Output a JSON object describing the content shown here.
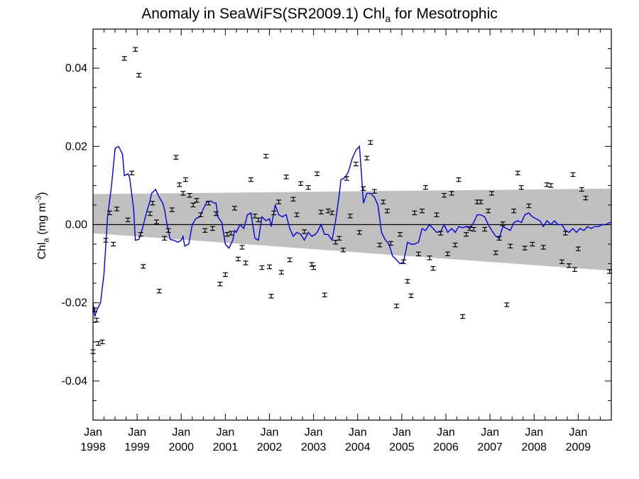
{
  "chart_data": {
    "type": "scatter",
    "title": "Anomaly in SeaWiFS(SR2009.1) Chl",
    "title_subscript": "a",
    "title_suffix": " for Mesotrophic",
    "ylabel_prefix": "Chl",
    "ylabel_subscript": "a",
    "ylabel_units": " (mg m",
    "ylabel_exponent": "-3",
    "ylabel_close": ")",
    "ylim": [
      -0.05,
      0.05
    ],
    "xlim": [
      1998.0,
      2009.75
    ],
    "yticks": [
      {
        "v": 0.04,
        "label": "0.04"
      },
      {
        "v": 0.02,
        "label": "0.02"
      },
      {
        "v": 0.0,
        "label": "0.00"
      },
      {
        "v": -0.02,
        "label": "-0.02"
      },
      {
        "v": -0.04,
        "label": "-0.04"
      }
    ],
    "xticks": [
      {
        "v": 1998.0,
        "month": "Jan",
        "year": "1998"
      },
      {
        "v": 1999.0,
        "month": "Jan",
        "year": "1999"
      },
      {
        "v": 2000.0,
        "month": "Jan",
        "year": "2000"
      },
      {
        "v": 2001.0,
        "month": "Jan",
        "year": "2001"
      },
      {
        "v": 2002.0,
        "month": "Jan",
        "year": "2002"
      },
      {
        "v": 2003.0,
        "month": "Jan",
        "year": "2003"
      },
      {
        "v": 2004.0,
        "month": "Jan",
        "year": "2004"
      },
      {
        "v": 2005.0,
        "month": "Jan",
        "year": "2005"
      },
      {
        "v": 2006.0,
        "month": "Jan",
        "year": "2006"
      },
      {
        "v": 2007.0,
        "month": "Jan",
        "year": "2007"
      },
      {
        "v": 2008.0,
        "month": "Jan",
        "year": "2008"
      },
      {
        "v": 2009.0,
        "month": "Jan",
        "year": "2009"
      }
    ],
    "band": {
      "color": "#c0c0c0",
      "left": [
        1998.0,
        0.0078,
        -0.0022
      ],
      "right": [
        2009.75,
        0.0092,
        -0.0118
      ]
    },
    "zero_line_color": "#000000",
    "line_color": "#0000dd",
    "errorbar_color": "#000000",
    "monthly_anomalies": [
      [
        1998.0,
        -0.0325
      ],
      [
        1998.04,
        -0.0218
      ],
      [
        1998.08,
        -0.0244
      ],
      [
        1998.12,
        -0.0304
      ],
      [
        1998.21,
        -0.03
      ],
      [
        1998.29,
        -0.004
      ],
      [
        1998.38,
        0.003
      ],
      [
        1998.46,
        -0.005
      ],
      [
        1998.54,
        0.004
      ],
      [
        1998.71,
        0.0425
      ],
      [
        1998.79,
        0.0012
      ],
      [
        1998.88,
        0.0132
      ],
      [
        1998.96,
        0.0448
      ],
      [
        1999.04,
        0.0382
      ],
      [
        1999.08,
        -0.0025
      ],
      [
        1999.14,
        -0.0107
      ],
      [
        1999.29,
        0.0028
      ],
      [
        1999.35,
        0.0055
      ],
      [
        1999.44,
        0.0007
      ],
      [
        1999.5,
        -0.017
      ],
      [
        1999.62,
        -0.0035
      ],
      [
        1999.71,
        -0.0015
      ],
      [
        1999.79,
        0.0038
      ],
      [
        1999.88,
        0.0172
      ],
      [
        1999.96,
        0.0102
      ],
      [
        2000.04,
        0.008
      ],
      [
        2000.1,
        0.0115
      ],
      [
        2000.19,
        0.0075
      ],
      [
        2000.27,
        0.005
      ],
      [
        2000.35,
        0.0062
      ],
      [
        2000.44,
        0.0025
      ],
      [
        2000.54,
        -0.0015
      ],
      [
        2000.62,
        0.0055
      ],
      [
        2000.71,
        -0.001
      ],
      [
        2000.79,
        0.0028
      ],
      [
        2000.88,
        -0.0152
      ],
      [
        2001.0,
        -0.0128
      ],
      [
        2001.04,
        -0.0025
      ],
      [
        2001.13,
        -0.0022
      ],
      [
        2001.21,
        0.0042
      ],
      [
        2001.29,
        -0.0088
      ],
      [
        2001.38,
        -0.0058
      ],
      [
        2001.46,
        -0.0098
      ],
      [
        2001.58,
        0.0115
      ],
      [
        2001.67,
        0.0022
      ],
      [
        2001.75,
        0.0012
      ],
      [
        2001.83,
        -0.011
      ],
      [
        2001.92,
        0.0175
      ],
      [
        2002.0,
        -0.0108
      ],
      [
        2002.04,
        -0.0183
      ],
      [
        2002.1,
        0.003
      ],
      [
        2002.21,
        0.0058
      ],
      [
        2002.27,
        -0.0122
      ],
      [
        2002.38,
        0.0122
      ],
      [
        2002.46,
        -0.009
      ],
      [
        2002.54,
        0.0065
      ],
      [
        2002.62,
        0.0025
      ],
      [
        2002.71,
        0.0105
      ],
      [
        2002.79,
        -0.0018
      ],
      [
        2002.88,
        0.0095
      ],
      [
        2002.96,
        -0.0102
      ],
      [
        2003.0,
        -0.011
      ],
      [
        2003.08,
        0.013
      ],
      [
        2003.17,
        0.0032
      ],
      [
        2003.25,
        -0.018
      ],
      [
        2003.33,
        0.0035
      ],
      [
        2003.42,
        0.003
      ],
      [
        2003.5,
        -0.0045
      ],
      [
        2003.58,
        -0.0035
      ],
      [
        2003.67,
        -0.0065
      ],
      [
        2003.75,
        0.0118
      ],
      [
        2003.83,
        0.0022
      ],
      [
        2003.96,
        0.0155
      ],
      [
        2004.04,
        -0.002
      ],
      [
        2004.13,
        0.0092
      ],
      [
        2004.21,
        0.017
      ],
      [
        2004.29,
        0.021
      ],
      [
        2004.38,
        0.0085
      ],
      [
        2004.5,
        -0.0052
      ],
      [
        2004.58,
        0.0058
      ],
      [
        2004.67,
        0.0035
      ],
      [
        2004.75,
        -0.0048
      ],
      [
        2004.88,
        -0.0208
      ],
      [
        2004.96,
        -0.0025
      ],
      [
        2005.04,
        -0.0095
      ],
      [
        2005.13,
        -0.0145
      ],
      [
        2005.21,
        -0.0182
      ],
      [
        2005.29,
        0.003
      ],
      [
        2005.38,
        -0.0075
      ],
      [
        2005.46,
        0.0035
      ],
      [
        2005.54,
        0.0095
      ],
      [
        2005.63,
        -0.0085
      ],
      [
        2005.71,
        -0.0112
      ],
      [
        2005.79,
        0.0025
      ],
      [
        2005.88,
        -0.0022
      ],
      [
        2005.96,
        0.0075
      ],
      [
        2006.04,
        -0.0075
      ],
      [
        2006.13,
        0.008
      ],
      [
        2006.21,
        -0.0052
      ],
      [
        2006.29,
        0.0115
      ],
      [
        2006.38,
        -0.0235
      ],
      [
        2006.46,
        -0.0025
      ],
      [
        2006.54,
        -0.001
      ],
      [
        2006.63,
        -0.0012
      ],
      [
        2006.71,
        0.0058
      ],
      [
        2006.79,
        0.0058
      ],
      [
        2006.88,
        -0.0012
      ],
      [
        2006.96,
        0.0035
      ],
      [
        2007.04,
        0.008
      ],
      [
        2007.13,
        -0.0072
      ],
      [
        2007.21,
        -0.0035
      ],
      [
        2007.29,
        0.0002
      ],
      [
        2007.38,
        -0.0205
      ],
      [
        2007.46,
        -0.0055
      ],
      [
        2007.54,
        0.0035
      ],
      [
        2007.63,
        0.0132
      ],
      [
        2007.71,
        0.0095
      ],
      [
        2007.79,
        -0.006
      ],
      [
        2007.88,
        0.0048
      ],
      [
        2007.96,
        -0.005
      ],
      [
        2008.21,
        -0.0058
      ],
      [
        2008.29,
        0.0102
      ],
      [
        2008.38,
        0.01
      ],
      [
        2008.63,
        -0.0095
      ],
      [
        2008.71,
        -0.0022
      ],
      [
        2008.79,
        -0.0105
      ],
      [
        2008.88,
        0.0128
      ],
      [
        2008.92,
        -0.0115
      ],
      [
        2009.0,
        -0.0062
      ],
      [
        2009.08,
        0.009
      ],
      [
        2009.17,
        0.0068
      ],
      [
        2009.71,
        -0.012
      ]
    ],
    "smoothed": [
      [
        1998.0,
        -0.02
      ],
      [
        1998.04,
        -0.0235
      ],
      [
        1998.08,
        -0.022
      ],
      [
        1998.17,
        -0.02
      ],
      [
        1998.25,
        -0.0125
      ],
      [
        1998.33,
        0.002
      ],
      [
        1998.42,
        0.01
      ],
      [
        1998.5,
        0.0195
      ],
      [
        1998.58,
        0.02
      ],
      [
        1998.67,
        0.018
      ],
      [
        1998.71,
        0.0125
      ],
      [
        1998.79,
        0.013
      ],
      [
        1998.83,
        0.012
      ],
      [
        1998.92,
        0.004
      ],
      [
        1998.96,
        -0.004
      ],
      [
        1999.04,
        -0.0038
      ],
      [
        1999.12,
        -0.001
      ],
      [
        1999.21,
        0.003
      ],
      [
        1999.29,
        0.006
      ],
      [
        1999.33,
        0.008
      ],
      [
        1999.42,
        0.009
      ],
      [
        1999.5,
        0.007
      ],
      [
        1999.58,
        0.0055
      ],
      [
        1999.62,
        0.004
      ],
      [
        1999.67,
        0.0005
      ],
      [
        1999.75,
        -0.0038
      ],
      [
        1999.83,
        -0.004
      ],
      [
        1999.92,
        -0.0045
      ],
      [
        2000.0,
        -0.004
      ],
      [
        2000.04,
        -0.003
      ],
      [
        2000.08,
        -0.0055
      ],
      [
        2000.17,
        -0.005
      ],
      [
        2000.25,
        0.0
      ],
      [
        2000.33,
        0.0015
      ],
      [
        2000.42,
        0.002
      ],
      [
        2000.5,
        0.004
      ],
      [
        2000.58,
        0.0058
      ],
      [
        2000.67,
        0.006
      ],
      [
        2000.75,
        0.0055
      ],
      [
        2000.79,
        0.0055
      ],
      [
        2000.83,
        0.002
      ],
      [
        2000.92,
        0.0005
      ],
      [
        2001.0,
        -0.005
      ],
      [
        2001.08,
        -0.006
      ],
      [
        2001.17,
        -0.004
      ],
      [
        2001.21,
        -0.0015
      ],
      [
        2001.25,
        -0.002
      ],
      [
        2001.33,
        0.0
      ],
      [
        2001.42,
        -0.001
      ],
      [
        2001.5,
        0.0025
      ],
      [
        2001.58,
        0.003
      ],
      [
        2001.67,
        -0.0035
      ],
      [
        2001.75,
        -0.004
      ],
      [
        2001.83,
        0.002
      ],
      [
        2001.92,
        0.001
      ],
      [
        2002.0,
        0.0015
      ],
      [
        2002.04,
        -0.0005
      ],
      [
        2002.13,
        0.005
      ],
      [
        2002.21,
        0.0025
      ],
      [
        2002.29,
        0.002
      ],
      [
        2002.38,
        0.0025
      ],
      [
        2002.46,
        -0.001
      ],
      [
        2002.54,
        -0.003
      ],
      [
        2002.62,
        -0.002
      ],
      [
        2002.71,
        -0.0025
      ],
      [
        2002.79,
        -0.004
      ],
      [
        2002.88,
        -0.002
      ],
      [
        2002.96,
        -0.003
      ],
      [
        2003.04,
        -0.0025
      ],
      [
        2003.08,
        -0.002
      ],
      [
        2003.17,
        0.0
      ],
      [
        2003.25,
        -0.0025
      ],
      [
        2003.33,
        -0.0025
      ],
      [
        2003.42,
        -0.004
      ],
      [
        2003.5,
        0.001
      ],
      [
        2003.58,
        0.0075
      ],
      [
        2003.62,
        0.0115
      ],
      [
        2003.71,
        0.012
      ],
      [
        2003.79,
        0.0135
      ],
      [
        2003.88,
        0.017
      ],
      [
        2003.96,
        0.019
      ],
      [
        2004.04,
        0.02
      ],
      [
        2004.08,
        0.014
      ],
      [
        2004.13,
        0.0055
      ],
      [
        2004.21,
        0.008
      ],
      [
        2004.29,
        0.008
      ],
      [
        2004.38,
        0.007
      ],
      [
        2004.46,
        0.005
      ],
      [
        2004.54,
        -0.002
      ],
      [
        2004.63,
        -0.004
      ],
      [
        2004.71,
        -0.005
      ],
      [
        2004.79,
        -0.008
      ],
      [
        2004.88,
        -0.009
      ],
      [
        2004.96,
        -0.01
      ],
      [
        2005.04,
        -0.0095
      ],
      [
        2005.13,
        -0.0045
      ],
      [
        2005.21,
        -0.005
      ],
      [
        2005.29,
        -0.005
      ],
      [
        2005.38,
        -0.0045
      ],
      [
        2005.46,
        -0.001
      ],
      [
        2005.54,
        -0.0015
      ],
      [
        2005.63,
        0.0
      ],
      [
        2005.71,
        -0.001
      ],
      [
        2005.79,
        -0.002
      ],
      [
        2005.88,
        -0.0018
      ],
      [
        2005.96,
        0.0
      ],
      [
        2006.04,
        -0.002
      ],
      [
        2006.13,
        -0.001
      ],
      [
        2006.21,
        -0.002
      ],
      [
        2006.29,
        -0.0005
      ],
      [
        2006.38,
        -0.0008
      ],
      [
        2006.46,
        -0.0005
      ],
      [
        2006.54,
        -0.001
      ],
      [
        2006.63,
        0.0005
      ],
      [
        2006.71,
        0.0025
      ],
      [
        2006.79,
        0.0025
      ],
      [
        2006.88,
        0.002
      ],
      [
        2006.96,
        0.0
      ],
      [
        2007.04,
        -0.0015
      ],
      [
        2007.13,
        -0.003
      ],
      [
        2007.21,
        -0.0035
      ],
      [
        2007.29,
        -0.0005
      ],
      [
        2007.38,
        -0.001
      ],
      [
        2007.46,
        -0.0015
      ],
      [
        2007.54,
        0.0005
      ],
      [
        2007.63,
        0.001
      ],
      [
        2007.71,
        0.0005
      ],
      [
        2007.79,
        0.0025
      ],
      [
        2007.88,
        0.003
      ],
      [
        2007.96,
        0.002
      ],
      [
        2008.04,
        0.0015
      ],
      [
        2008.13,
        0.001
      ],
      [
        2008.21,
        -0.0005
      ],
      [
        2008.29,
        0.001
      ],
      [
        2008.38,
        0.0
      ],
      [
        2008.46,
        0.001
      ],
      [
        2008.54,
        0.0
      ],
      [
        2008.63,
        0.0
      ],
      [
        2008.71,
        -0.0015
      ],
      [
        2008.79,
        -0.002
      ],
      [
        2008.88,
        -0.001
      ],
      [
        2008.96,
        -0.002
      ],
      [
        2009.04,
        -0.001
      ],
      [
        2009.13,
        -0.0015
      ],
      [
        2009.21,
        -0.0005
      ],
      [
        2009.29,
        -0.001
      ],
      [
        2009.38,
        -0.0005
      ],
      [
        2009.46,
        -0.0005
      ],
      [
        2009.54,
        0.0
      ],
      [
        2009.63,
        0.0
      ],
      [
        2009.71,
        0.0005
      ],
      [
        2009.75,
        0.0005
      ]
    ]
  }
}
